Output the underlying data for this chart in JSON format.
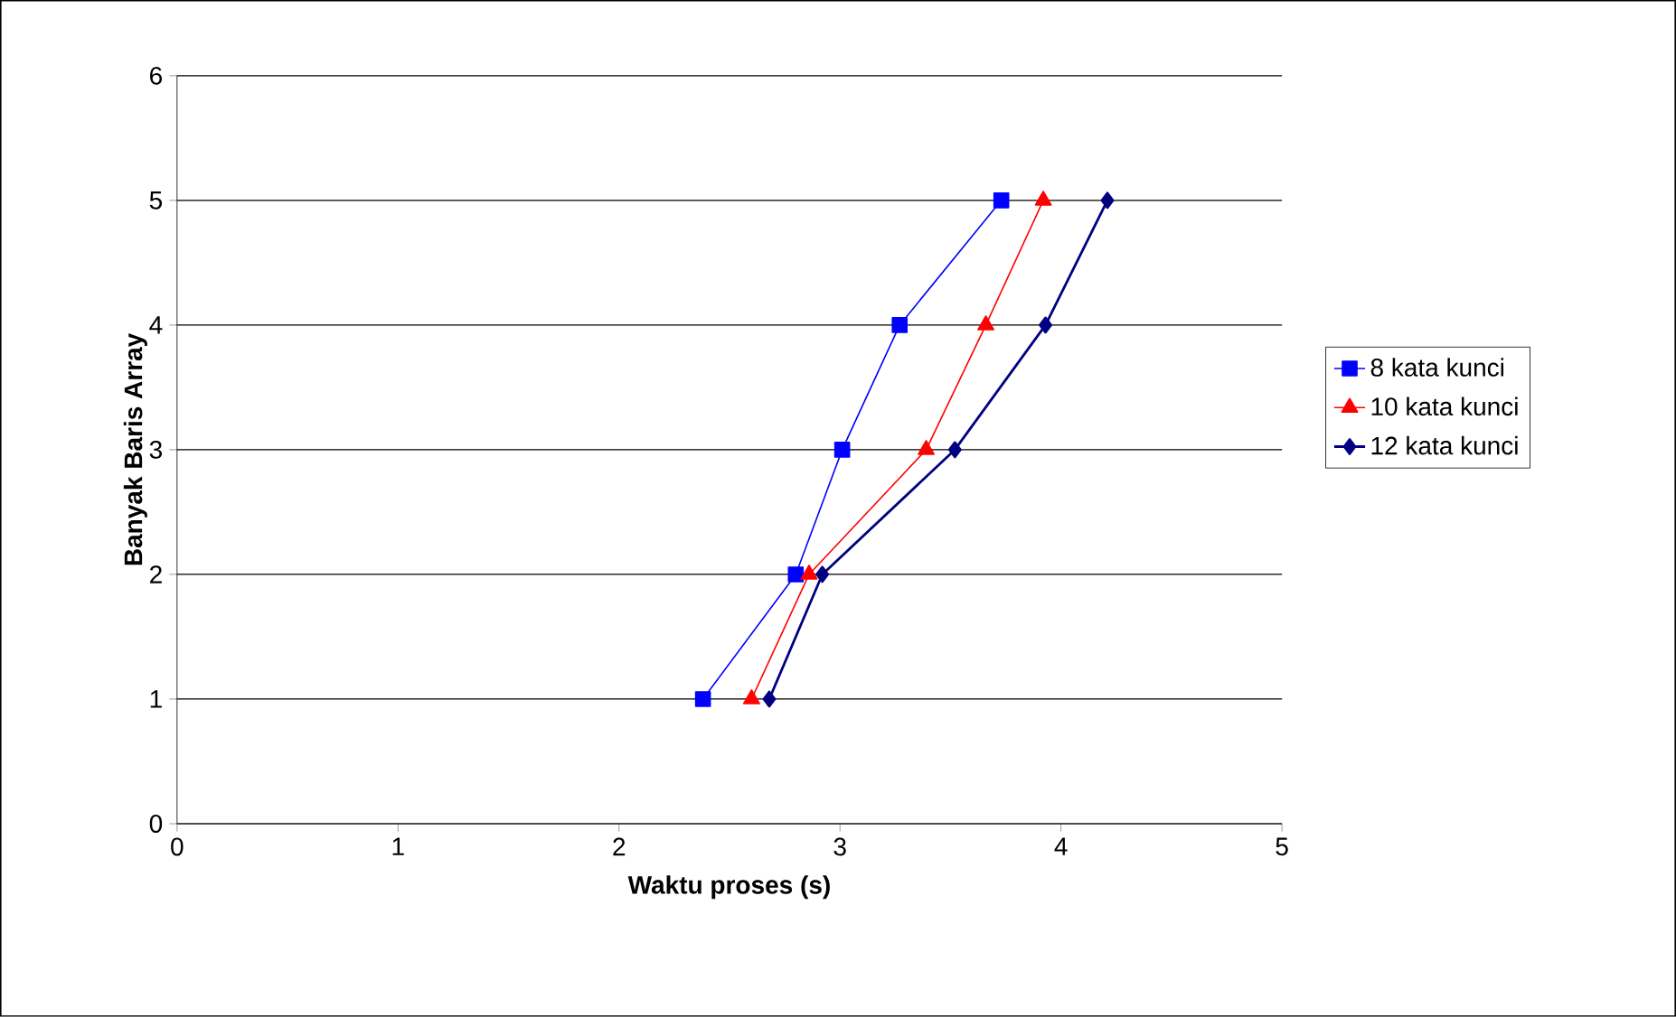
{
  "chart_data": {
    "type": "line",
    "xlabel": "Waktu proses (s)",
    "ylabel": "Banyak Baris Array",
    "xlim": [
      0,
      5
    ],
    "ylim": [
      0,
      6
    ],
    "xticks": [
      0,
      1,
      2,
      3,
      4,
      5
    ],
    "yticks": [
      0,
      1,
      2,
      3,
      4,
      5,
      6
    ],
    "grid": "y",
    "legend": "right",
    "series": [
      {
        "name": "8 kata  kunci",
        "color": "#0000ff",
        "marker": "square",
        "x": [
          2.38,
          2.8,
          3.01,
          3.27,
          3.73
        ],
        "values": [
          1,
          2,
          3,
          4,
          5
        ]
      },
      {
        "name": "10 kata  kunci",
        "color": "#ff0000",
        "marker": "triangle",
        "x": [
          2.6,
          2.86,
          3.39,
          3.66,
          3.92
        ],
        "values": [
          1,
          2,
          3,
          4,
          5
        ]
      },
      {
        "name": "12 kata  kunci",
        "color": "#000080",
        "marker": "diamond",
        "x": [
          2.68,
          2.92,
          3.52,
          3.93,
          4.21
        ],
        "values": [
          1,
          2,
          3,
          4,
          5
        ]
      }
    ]
  }
}
